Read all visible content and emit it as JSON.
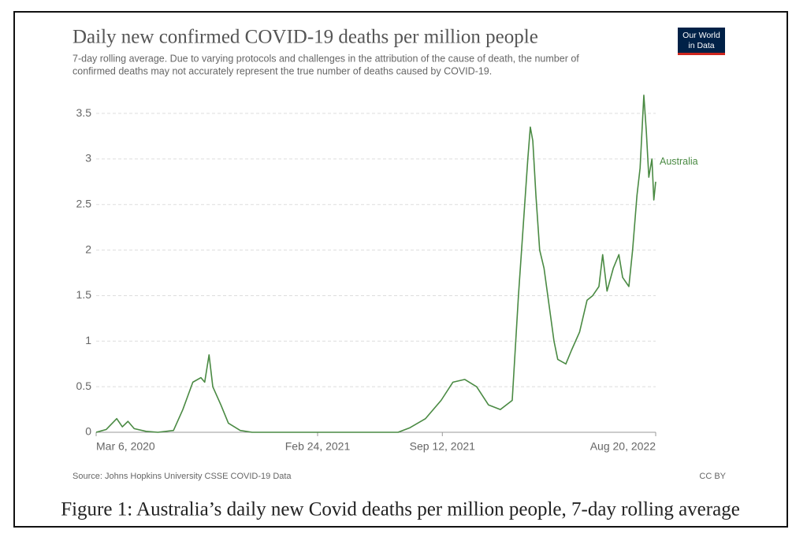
{
  "chart_data": {
    "type": "line",
    "title": "Daily new confirmed COVID-19 deaths per million people",
    "subtitle": [
      "7-day rolling average. Due to varying protocols and challenges in the attribution of the cause of death, the number of",
      "confirmed deaths may not accurately represent the true number of deaths caused by COVID-19."
    ],
    "logo": [
      "Our World",
      "in Data"
    ],
    "source": "Source: Johns Hopkins University CSSE COVID-19 Data",
    "license": "CC BY",
    "caption": "Figure 1: Australia’s daily new Covid deaths per million people, 7-day rolling average",
    "x": [
      "2020-03-06",
      "2020-03-22",
      "2020-04-08",
      "2020-04-17",
      "2020-04-26",
      "2020-05-06",
      "2020-05-25",
      "2020-06-13",
      "2020-07-08",
      "2020-07-23",
      "2020-08-08",
      "2020-08-21",
      "2020-08-27",
      "2020-09-03",
      "2020-09-09",
      "2020-09-22",
      "2020-10-04",
      "2020-10-23",
      "2020-11-11",
      "2021-02-20",
      "2021-07-03",
      "2021-07-22",
      "2021-08-16",
      "2021-09-10",
      "2021-09-29",
      "2021-10-18",
      "2021-11-06",
      "2021-11-25",
      "2021-12-14",
      "2022-01-02",
      "2022-01-12",
      "2022-01-20",
      "2022-01-27",
      "2022-01-31",
      "2022-02-04",
      "2022-02-09",
      "2022-02-15",
      "2022-02-22",
      "2022-03-02",
      "2022-03-10",
      "2022-03-16",
      "2022-03-29",
      "2022-04-07",
      "2022-04-20",
      "2022-05-02",
      "2022-05-11",
      "2022-05-21",
      "2022-05-27",
      "2022-06-03",
      "2022-06-13",
      "2022-06-22",
      "2022-06-28",
      "2022-07-08",
      "2022-07-14",
      "2022-07-21",
      "2022-07-26",
      "2022-08-01",
      "2022-08-05",
      "2022-08-09",
      "2022-08-14",
      "2022-08-17",
      "2022-08-20"
    ],
    "series": [
      {
        "name": "Australia",
        "color": "#4a8a43",
        "values": [
          0,
          0.03,
          0.15,
          0.06,
          0.12,
          0.04,
          0.01,
          0,
          0.02,
          0.25,
          0.55,
          0.6,
          0.55,
          0.85,
          0.5,
          0.3,
          0.1,
          0.02,
          0,
          0,
          0,
          0.05,
          0.15,
          0.35,
          0.55,
          0.58,
          0.5,
          0.3,
          0.25,
          0.35,
          1.5,
          2.3,
          3.0,
          3.35,
          3.2,
          2.6,
          2.0,
          1.8,
          1.4,
          1.0,
          0.8,
          0.75,
          0.9,
          1.1,
          1.45,
          1.5,
          1.6,
          1.95,
          1.55,
          1.8,
          1.95,
          1.7,
          1.6,
          2.0,
          2.6,
          2.9,
          3.7,
          3.3,
          2.8,
          3.0,
          2.55,
          2.75
        ]
      }
    ],
    "xlim": [
      "2020-03-06",
      "2022-08-20"
    ],
    "xticks": [
      {
        "value": "2020-03-06",
        "label": "Mar 6, 2020"
      },
      {
        "value": "2021-02-24",
        "label": "Feb 24, 2021"
      },
      {
        "value": "2021-09-12",
        "label": "Sep 12, 2021"
      },
      {
        "value": "2022-08-20",
        "label": "Aug 20, 2022"
      }
    ],
    "ylim": [
      0,
      3.8
    ],
    "yticks": [
      0,
      0.5,
      1,
      1.5,
      2,
      2.5,
      3,
      3.5
    ],
    "grid": true
  }
}
